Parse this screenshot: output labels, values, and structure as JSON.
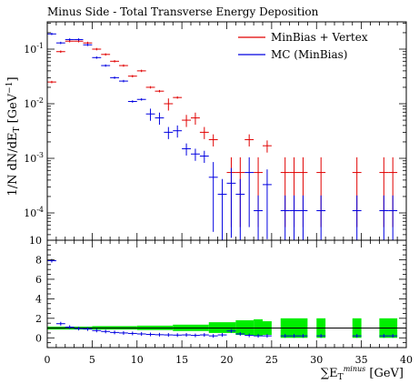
{
  "chart_data": {
    "type": "scatter",
    "title": "Minus Side - Total Transverse Energy Deposition",
    "xlabel": "∑E_T^minus [GeV]",
    "ylabel": "1/N dN/dE_T [GeV^-1]",
    "xlim": [
      0,
      40
    ],
    "main_ylim_log10": [
      -4.5,
      -0.5
    ],
    "ratio_ylim": [
      -1,
      10
    ],
    "x_ticks": [
      "0",
      "5",
      "10",
      "15",
      "20",
      "25",
      "30",
      "35",
      "40"
    ],
    "main_y_ticks": [
      "10^-1",
      "10^-2",
      "10^-3",
      "10^-4"
    ],
    "ratio_y_ticks": [
      "0",
      "2",
      "4",
      "6",
      "8",
      "10"
    ],
    "legend_position": "top-right",
    "series": [
      {
        "name": "MinBias + Vertex",
        "color": "#e00000",
        "points": [
          {
            "x": 0.5,
            "y": 0.025
          },
          {
            "x": 1.5,
            "y": 0.09
          },
          {
            "x": 2.5,
            "y": 0.14
          },
          {
            "x": 3.5,
            "y": 0.14
          },
          {
            "x": 4.5,
            "y": 0.13
          },
          {
            "x": 5.5,
            "y": 0.1
          },
          {
            "x": 6.5,
            "y": 0.08
          },
          {
            "x": 7.5,
            "y": 0.06
          },
          {
            "x": 8.5,
            "y": 0.05
          },
          {
            "x": 9.5,
            "y": 0.032
          },
          {
            "x": 10.5,
            "y": 0.04
          },
          {
            "x": 11.5,
            "y": 0.02
          },
          {
            "x": 12.5,
            "y": 0.017
          },
          {
            "x": 13.5,
            "y": 0.01
          },
          {
            "x": 14.5,
            "y": 0.013
          },
          {
            "x": 15.5,
            "y": 0.005
          },
          {
            "x": 16.5,
            "y": 0.0055
          },
          {
            "x": 17.5,
            "y": 0.003
          },
          {
            "x": 18.5,
            "y": 0.0022
          },
          {
            "x": 20.5,
            "y": 0.00055
          },
          {
            "x": 21.5,
            "y": 0.00055
          },
          {
            "x": 22.5,
            "y": 0.0022
          },
          {
            "x": 23.5,
            "y": 0.00055
          },
          {
            "x": 24.5,
            "y": 0.0017
          },
          {
            "x": 26.5,
            "y": 0.00055
          },
          {
            "x": 27.5,
            "y": 0.00055
          },
          {
            "x": 28.5,
            "y": 0.00055
          },
          {
            "x": 30.5,
            "y": 0.00055
          },
          {
            "x": 34.5,
            "y": 0.00055
          },
          {
            "x": 37.5,
            "y": 0.00055
          },
          {
            "x": 38.5,
            "y": 0.00055
          }
        ]
      },
      {
        "name": "MC (MinBias)",
        "color": "#0000e0",
        "points": [
          {
            "x": 0.5,
            "y": 0.19
          },
          {
            "x": 1.5,
            "y": 0.13
          },
          {
            "x": 2.5,
            "y": 0.15
          },
          {
            "x": 3.5,
            "y": 0.15
          },
          {
            "x": 4.5,
            "y": 0.12
          },
          {
            "x": 5.5,
            "y": 0.07
          },
          {
            "x": 6.5,
            "y": 0.05
          },
          {
            "x": 7.5,
            "y": 0.03
          },
          {
            "x": 8.5,
            "y": 0.026
          },
          {
            "x": 9.5,
            "y": 0.011
          },
          {
            "x": 10.5,
            "y": 0.012
          },
          {
            "x": 11.5,
            "y": 0.0065
          },
          {
            "x": 12.5,
            "y": 0.0055
          },
          {
            "x": 13.5,
            "y": 0.003
          },
          {
            "x": 14.5,
            "y": 0.0032
          },
          {
            "x": 15.5,
            "y": 0.0015
          },
          {
            "x": 16.5,
            "y": 0.0012
          },
          {
            "x": 17.5,
            "y": 0.0011
          },
          {
            "x": 18.5,
            "y": 0.00045
          },
          {
            "x": 19.5,
            "y": 0.00022
          },
          {
            "x": 20.5,
            "y": 0.00035
          },
          {
            "x": 21.5,
            "y": 0.00022
          },
          {
            "x": 22.5,
            "y": 0.00055
          },
          {
            "x": 23.5,
            "y": 0.00011
          },
          {
            "x": 24.5,
            "y": 0.00033
          },
          {
            "x": 26.5,
            "y": 0.00011
          },
          {
            "x": 27.5,
            "y": 0.00011
          },
          {
            "x": 28.5,
            "y": 0.00011
          },
          {
            "x": 30.5,
            "y": 0.00011
          },
          {
            "x": 34.5,
            "y": 0.00011
          },
          {
            "x": 37.5,
            "y": 0.00011
          },
          {
            "x": 38.5,
            "y": 0.00011
          }
        ]
      }
    ],
    "ratio": {
      "reference_line": 1,
      "band_color": "#00ee00",
      "bands": [
        {
          "x0": 0,
          "x1": 5,
          "lo": 0.85,
          "hi": 1.15
        },
        {
          "x0": 5,
          "x1": 10,
          "lo": 0.85,
          "hi": 1.2
        },
        {
          "x0": 10,
          "x1": 14,
          "lo": 0.8,
          "hi": 1.25
        },
        {
          "x0": 14,
          "x1": 18,
          "lo": 0.7,
          "hi": 1.35
        },
        {
          "x0": 18,
          "x1": 21,
          "lo": 0.5,
          "hi": 1.6
        },
        {
          "x0": 21,
          "x1": 23,
          "lo": 0.3,
          "hi": 1.8
        },
        {
          "x0": 23,
          "x1": 24,
          "lo": 0.2,
          "hi": 1.9
        },
        {
          "x0": 24,
          "x1": 25,
          "lo": 0.3,
          "hi": 1.7
        },
        {
          "x0": 26,
          "x1": 29,
          "lo": 0.0,
          "hi": 2.0
        },
        {
          "x0": 30,
          "x1": 31,
          "lo": 0.0,
          "hi": 2.0
        },
        {
          "x0": 34,
          "x1": 35,
          "lo": 0.0,
          "hi": 2.0
        },
        {
          "x0": 37,
          "x1": 39,
          "lo": 0.0,
          "hi": 2.0
        }
      ],
      "points": [
        {
          "x": 0.5,
          "y": 7.9
        },
        {
          "x": 1.5,
          "y": 1.45
        },
        {
          "x": 2.5,
          "y": 1.1
        },
        {
          "x": 3.5,
          "y": 0.95
        },
        {
          "x": 4.5,
          "y": 0.9
        },
        {
          "x": 5.5,
          "y": 0.75
        },
        {
          "x": 6.5,
          "y": 0.65
        },
        {
          "x": 7.5,
          "y": 0.55
        },
        {
          "x": 8.5,
          "y": 0.5
        },
        {
          "x": 9.5,
          "y": 0.45
        },
        {
          "x": 10.5,
          "y": 0.4
        },
        {
          "x": 11.5,
          "y": 0.35
        },
        {
          "x": 12.5,
          "y": 0.32
        },
        {
          "x": 13.5,
          "y": 0.3
        },
        {
          "x": 14.5,
          "y": 0.28
        },
        {
          "x": 15.5,
          "y": 0.3
        },
        {
          "x": 16.5,
          "y": 0.25
        },
        {
          "x": 17.5,
          "y": 0.3
        },
        {
          "x": 18.5,
          "y": 0.2
        },
        {
          "x": 19.5,
          "y": 0.3
        },
        {
          "x": 20.5,
          "y": 0.7
        },
        {
          "x": 21.5,
          "y": 0.4
        },
        {
          "x": 22.5,
          "y": 0.25
        },
        {
          "x": 23.5,
          "y": 0.2
        },
        {
          "x": 24.5,
          "y": 0.2
        },
        {
          "x": 26.5,
          "y": 0.2
        },
        {
          "x": 27.5,
          "y": 0.2
        },
        {
          "x": 28.5,
          "y": 0.2
        },
        {
          "x": 30.5,
          "y": 0.2
        },
        {
          "x": 34.5,
          "y": 0.2
        },
        {
          "x": 37.5,
          "y": 0.2
        },
        {
          "x": 38.5,
          "y": 0.2
        }
      ]
    }
  }
}
